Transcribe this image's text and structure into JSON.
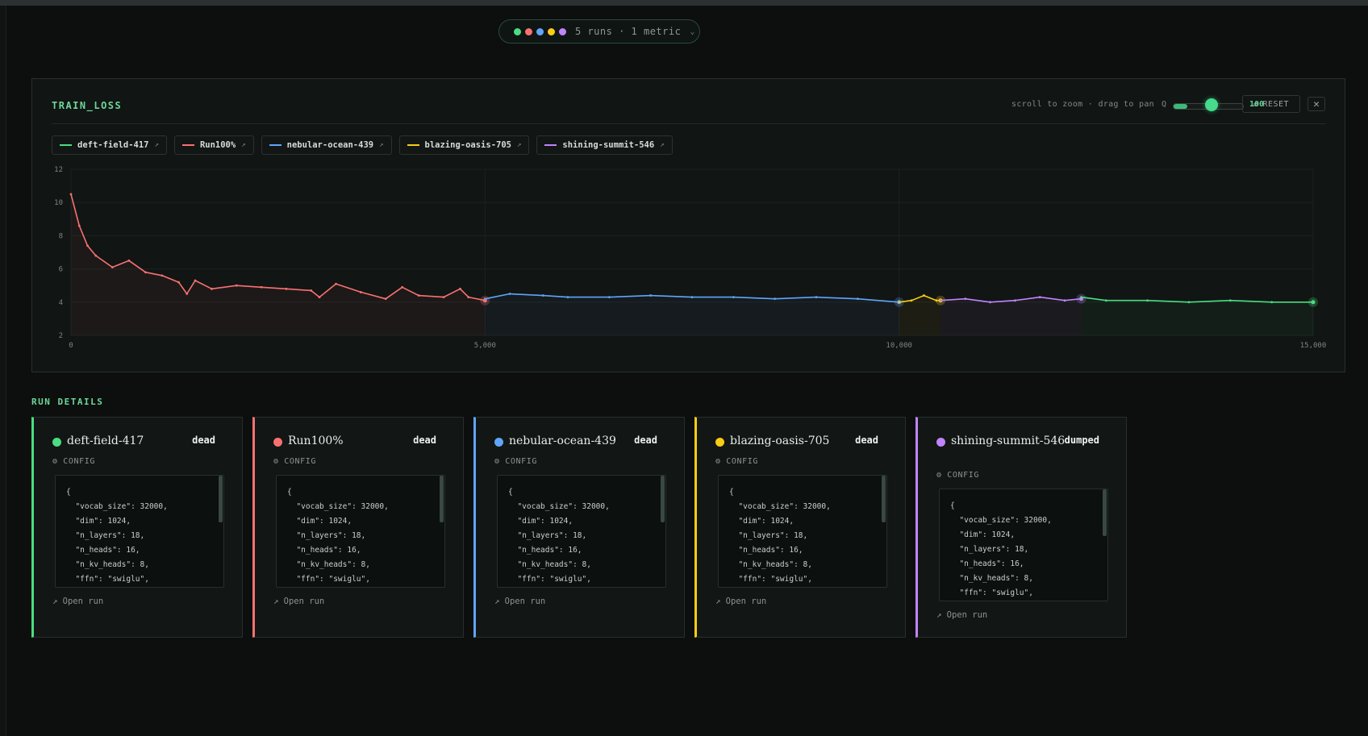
{
  "selector": {
    "dot_colors": [
      "#4ade80",
      "#f87171",
      "#60a5fa",
      "#facc15",
      "#c084fc"
    ],
    "label": "5 runs · 1 metric",
    "chevron": "⌄"
  },
  "panel": {
    "title": "TRAIN_LOSS",
    "hint": "scroll to zoom · drag to pan",
    "zoom_icon": "Q",
    "zoom_value": "100",
    "reset_label": "RESET",
    "reset_icon": "↺",
    "close_icon": "✕"
  },
  "legend": [
    {
      "name": "deft-field-417",
      "color": "#4ade80",
      "arrow": "↗"
    },
    {
      "name": "Run100%",
      "color": "#f87171",
      "arrow": "↗"
    },
    {
      "name": "nebular-ocean-439",
      "color": "#60a5fa",
      "arrow": "↗"
    },
    {
      "name": "blazing-oasis-705",
      "color": "#facc15",
      "arrow": "↗"
    },
    {
      "name": "shining-summit-546",
      "color": "#c084fc",
      "arrow": "↗"
    }
  ],
  "chart_data": {
    "type": "line",
    "title": "",
    "xlabel": "",
    "ylabel": "",
    "xlim": [
      0,
      15000
    ],
    "ylim": [
      2,
      12
    ],
    "x_ticks": [
      "0",
      "5,000",
      "10,000",
      "15,000"
    ],
    "x_tick_values": [
      0,
      5000,
      10000,
      15000
    ],
    "y_ticks": [
      "12",
      "10",
      "8",
      "6",
      "4",
      "2"
    ],
    "y_tick_values": [
      12,
      10,
      8,
      6,
      4,
      2
    ],
    "grid": true,
    "legend_position": "top-left",
    "series": [
      {
        "name": "Run100%",
        "color": "#f87171",
        "x": [
          0,
          100,
          200,
          300,
          500,
          700,
          900,
          1100,
          1300,
          1400,
          1500,
          1700,
          2000,
          2300,
          2600,
          2900,
          3000,
          3200,
          3500,
          3800,
          4000,
          4200,
          4500,
          4700,
          4800,
          5000
        ],
        "y": [
          10.5,
          8.6,
          7.4,
          6.8,
          6.1,
          6.5,
          5.8,
          5.6,
          5.2,
          4.5,
          5.3,
          4.8,
          5.0,
          4.9,
          4.8,
          4.7,
          4.3,
          5.1,
          4.6,
          4.2,
          4.9,
          4.4,
          4.3,
          4.8,
          4.3,
          4.1
        ]
      },
      {
        "name": "nebular-ocean-439",
        "color": "#60a5fa",
        "x": [
          5000,
          5300,
          5700,
          6000,
          6500,
          7000,
          7500,
          8000,
          8500,
          9000,
          9500,
          10000
        ],
        "y": [
          4.2,
          4.5,
          4.4,
          4.3,
          4.3,
          4.4,
          4.3,
          4.3,
          4.2,
          4.3,
          4.2,
          4.0
        ]
      },
      {
        "name": "blazing-oasis-705",
        "color": "#facc15",
        "x": [
          10000,
          10150,
          10300,
          10450,
          10500
        ],
        "y": [
          4.0,
          4.1,
          4.4,
          4.1,
          4.1
        ]
      },
      {
        "name": "shining-summit-546",
        "color": "#c084fc",
        "x": [
          10500,
          10800,
          11100,
          11400,
          11700,
          12000,
          12200
        ],
        "y": [
          4.1,
          4.2,
          4.0,
          4.1,
          4.3,
          4.1,
          4.2
        ]
      },
      {
        "name": "deft-field-417",
        "color": "#4ade80",
        "x": [
          12200,
          12500,
          13000,
          13500,
          14000,
          14500,
          15000
        ],
        "y": [
          4.3,
          4.1,
          4.1,
          4.0,
          4.1,
          4.0,
          4.0
        ]
      }
    ]
  },
  "run_details": {
    "title": "RUN DETAILS",
    "config_label": "CONFIG",
    "config_icon": "⚙",
    "open_label": "Open run",
    "open_icon": "↗",
    "config_lines": [
      "{",
      "  \"vocab_size\": 32000,",
      "  \"dim\": 1024,",
      "  \"n_layers\": 18,",
      "  \"n_heads\": 16,",
      "  \"n_kv_heads\": 8,",
      "  \"ffn\": \"swiglu\","
    ],
    "runs": [
      {
        "name": "deft-field-417",
        "status": "dead",
        "color": "#4ade80"
      },
      {
        "name": "Run100%",
        "status": "dead",
        "color": "#f87171"
      },
      {
        "name": "nebular-ocean-439",
        "status": "dead",
        "color": "#60a5fa"
      },
      {
        "name": "blazing-oasis-705",
        "status": "dead",
        "color": "#facc15"
      },
      {
        "name": "shining-summit-546",
        "status": "dumped",
        "color": "#c084fc"
      }
    ]
  }
}
